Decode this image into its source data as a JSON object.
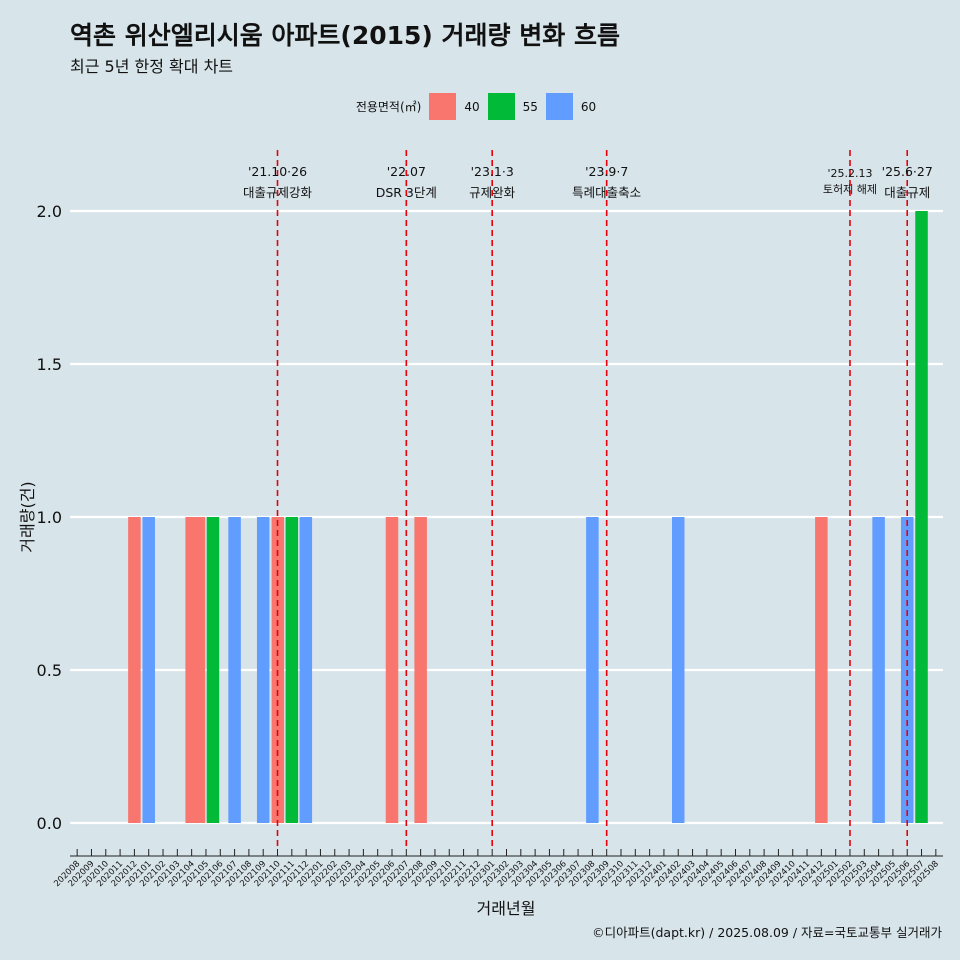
{
  "header": {
    "title": "역촌 위산엘리시움 아파트(2015) 거래량 변화 흐름",
    "subtitle": "최근 5년 한정 확대 차트"
  },
  "legend": {
    "title": "전용면적(㎡)",
    "items": [
      {
        "label": "40",
        "color": "#f8766d"
      },
      {
        "label": "55",
        "color": "#00ba38"
      },
      {
        "label": "60",
        "color": "#619cff"
      }
    ]
  },
  "caption": "©디아파트(dapt.kr) / 2025.08.09 / 자료=국토교통부 실거래가",
  "chart_data": {
    "type": "bar",
    "xlabel": "거래년월",
    "ylabel": "거래량(건)",
    "ylim": [
      0,
      2
    ],
    "yticks": [
      "0.0",
      "0.5",
      "1.0",
      "1.5",
      "2.0"
    ],
    "grid": true,
    "legend_position": "top",
    "categories": [
      "202008",
      "202009",
      "202010",
      "202011",
      "202012",
      "202101",
      "202102",
      "202103",
      "202104",
      "202105",
      "202106",
      "202107",
      "202108",
      "202109",
      "202110",
      "202111",
      "202112",
      "202201",
      "202202",
      "202203",
      "202204",
      "202205",
      "202206",
      "202207",
      "202208",
      "202209",
      "202210",
      "202211",
      "202212",
      "202301",
      "202302",
      "202303",
      "202304",
      "202305",
      "202306",
      "202307",
      "202308",
      "202309",
      "202310",
      "202311",
      "202312",
      "202401",
      "202402",
      "202403",
      "202404",
      "202405",
      "202406",
      "202407",
      "202408",
      "202409",
      "202410",
      "202411",
      "202412",
      "202501",
      "202502",
      "202503",
      "202504",
      "202505",
      "202506",
      "202507",
      "202508"
    ],
    "series": [
      {
        "name": "40",
        "color": "#f8766d",
        "points": [
          [
            "202012",
            1
          ],
          [
            "202104",
            1
          ],
          [
            "202105",
            1
          ],
          [
            "202111",
            1
          ],
          [
            "202206",
            1
          ],
          [
            "202208",
            1
          ],
          [
            "202412",
            1
          ]
        ]
      },
      {
        "name": "55",
        "color": "#00ba38",
        "points": [
          [
            "202105",
            1
          ],
          [
            "202111",
            1
          ],
          [
            "202507",
            2
          ]
        ]
      },
      {
        "name": "60",
        "color": "#619cff",
        "points": [
          [
            "202101",
            1
          ],
          [
            "202107",
            1
          ],
          [
            "202109",
            1
          ],
          [
            "202111",
            1
          ],
          [
            "202308",
            1
          ],
          [
            "202402",
            1
          ],
          [
            "202504",
            1
          ],
          [
            "202506",
            1
          ]
        ]
      }
    ],
    "annotations": [
      {
        "month": "202110",
        "date": "'21.10·26",
        "label": "대출규제강화"
      },
      {
        "month": "202207",
        "date": "'22.07",
        "label": "DSR 3단계"
      },
      {
        "month": "202301",
        "date": "'23.1·3",
        "label": "규제완화"
      },
      {
        "month": "202309",
        "date": "'23.9·7",
        "label": "특례대출축소"
      },
      {
        "month": "202502",
        "date": "'25.2.13",
        "label": "토허제 해제"
      },
      {
        "month": "202506",
        "date": "'25.6·27",
        "label": "대출규제"
      }
    ]
  }
}
